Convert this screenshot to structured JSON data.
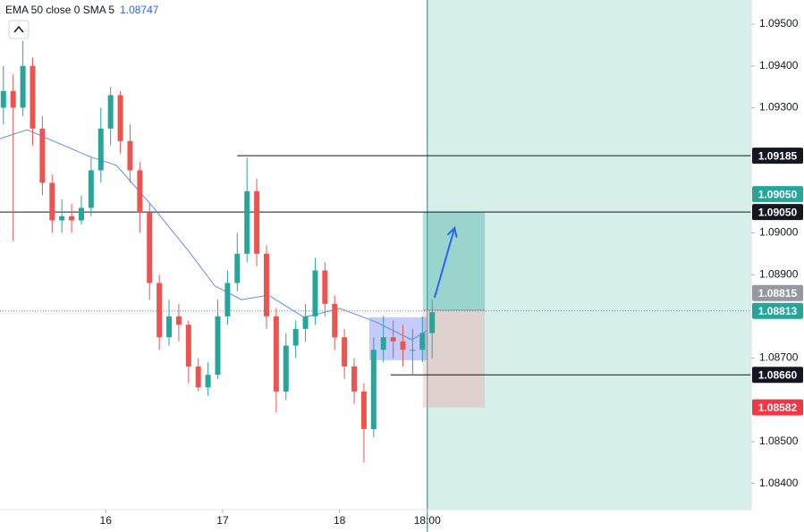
{
  "chart_data": {
    "type": "candlestick",
    "indicator_label": "EMA 50 close 0 SMA 5",
    "indicator_value": 1.08747,
    "xlim": [
      -21.7,
      132.5
    ],
    "ylim": [
      1.08337,
      1.09558
    ],
    "xticks": [
      {
        "value": 0,
        "label": "16"
      },
      {
        "value": 24,
        "label": "17"
      },
      {
        "value": 48,
        "label": "18"
      },
      {
        "value": 66,
        "label": "18:00"
      }
    ],
    "yticks": [
      {
        "value": 1.095,
        "label": "1.09500"
      },
      {
        "value": 1.094,
        "label": "1.09400"
      },
      {
        "value": 1.093,
        "label": "1.09300"
      },
      {
        "value": 1.09,
        "label": "1.09000"
      },
      {
        "value": 1.089,
        "label": "1.08900"
      },
      {
        "value": 1.087,
        "label": "1.08700"
      },
      {
        "value": 1.085,
        "label": "1.08500"
      },
      {
        "value": 1.084,
        "label": "1.08400"
      }
    ],
    "up_color": "#26a69a",
    "down_color": "#ef5350",
    "candles": {
      "x": [
        -21,
        -19,
        -17,
        -15,
        -13,
        -11,
        -9,
        -7,
        -5,
        -3,
        -1,
        1,
        3,
        5,
        7,
        9,
        11,
        13,
        15,
        17,
        19,
        21,
        23,
        25,
        27,
        29,
        31,
        33,
        35,
        37,
        39,
        41,
        43,
        45,
        47,
        49,
        51,
        53,
        55,
        57,
        59,
        61,
        63,
        65,
        67
      ],
      "open": [
        1.093,
        1.0934,
        1.093,
        1.094,
        1.0925,
        1.0912,
        1.0903,
        1.0904,
        1.0903,
        1.0906,
        1.0915,
        1.0925,
        1.0933,
        1.0922,
        1.0915,
        1.0905,
        1.0888,
        1.0875,
        1.088,
        1.0878,
        1.0868,
        1.0863,
        1.0866,
        1.088,
        1.0888,
        1.0895,
        1.091,
        1.0895,
        1.088,
        1.0862,
        1.0873,
        1.0877,
        1.088,
        1.0891,
        1.0883,
        1.0875,
        1.0868,
        1.0862,
        1.0853,
        1.0872,
        1.0875,
        1.0874,
        1.0872,
        1.0872,
        1.0876
      ],
      "high": [
        1.094,
        1.0938,
        1.0946,
        1.0942,
        1.0928,
        1.0914,
        1.0908,
        1.0907,
        1.0909,
        1.0918,
        1.093,
        1.0935,
        1.0934,
        1.0926,
        1.0917,
        1.0907,
        1.089,
        1.0884,
        1.0883,
        1.0879,
        1.087,
        1.0869,
        1.0884,
        1.0891,
        1.09,
        1.0918,
        1.0913,
        1.0897,
        1.0882,
        1.0876,
        1.0879,
        1.0883,
        1.0894,
        1.0893,
        1.0885,
        1.0877,
        1.087,
        1.0864,
        1.0875,
        1.088,
        1.0879,
        1.0878,
        1.0877,
        1.088,
        1.0884
      ],
      "low": [
        1.0926,
        1.0898,
        1.0928,
        1.0921,
        1.0909,
        1.09,
        1.09,
        1.09,
        1.0902,
        1.0904,
        1.0912,
        1.0921,
        1.0919,
        1.0912,
        1.09,
        1.0884,
        1.0872,
        1.0873,
        1.0874,
        1.0864,
        1.0862,
        1.0861,
        1.0865,
        1.0878,
        1.0886,
        1.0893,
        1.0892,
        1.0877,
        1.0857,
        1.086,
        1.087,
        1.0874,
        1.0878,
        1.088,
        1.0872,
        1.0865,
        1.0859,
        1.0845,
        1.0851,
        1.0869,
        1.087,
        1.0868,
        1.0866,
        1.0869,
        1.087
      ],
      "close": [
        1.0934,
        1.093,
        1.094,
        1.0925,
        1.0912,
        1.0903,
        1.0904,
        1.0903,
        1.0906,
        1.0915,
        1.0925,
        1.0933,
        1.0922,
        1.0915,
        1.0905,
        1.0888,
        1.0875,
        1.088,
        1.0878,
        1.0868,
        1.0863,
        1.0866,
        1.088,
        1.0888,
        1.0895,
        1.091,
        1.0895,
        1.088,
        1.0862,
        1.0873,
        1.0877,
        1.088,
        1.0891,
        1.0883,
        1.0875,
        1.0868,
        1.0862,
        1.0853,
        1.0872,
        1.0875,
        1.0874,
        1.0872,
        1.0872,
        1.0876,
        1.0881
      ]
    },
    "ema": {
      "color": "#5b8def",
      "x": [
        -21.7,
        -16.1,
        -3.3,
        2.2,
        9.5,
        16.9,
        22.4,
        27.9,
        33.4,
        40.7,
        48.1,
        55.4,
        62.8,
        66
      ],
      "values": [
        1.09226,
        1.09247,
        1.09183,
        1.09162,
        1.09065,
        1.08958,
        1.08873,
        1.0884,
        1.08851,
        1.08798,
        1.08819,
        1.08787,
        1.08744,
        1.08766
      ]
    },
    "highlight_start": 66,
    "levels": [
      {
        "value": 1.09185,
        "label": "1.09185",
        "from_x": 27
      },
      {
        "value": 1.0905,
        "label": "1.09050"
      },
      {
        "value": 1.0866,
        "label": "1.08660",
        "from_x": 58.5
      }
    ],
    "current_price": {
      "value": 1.08813,
      "label": "1.08813"
    },
    "position": {
      "x_start": 65.1,
      "x_end": 77.8,
      "target": {
        "value": 1.0905,
        "label": "1.09050"
      },
      "entry": {
        "value": 1.08815,
        "label": "1.08815"
      },
      "stop": {
        "value": 1.08582,
        "label": "1.08582"
      }
    },
    "box": {
      "x": [
        54.1,
        66
      ],
      "y": [
        1.08695,
        1.08798
      ]
    },
    "arrow": {
      "x": [
        67.5,
        71.6
      ],
      "y": [
        1.08845,
        1.09012
      ]
    }
  }
}
